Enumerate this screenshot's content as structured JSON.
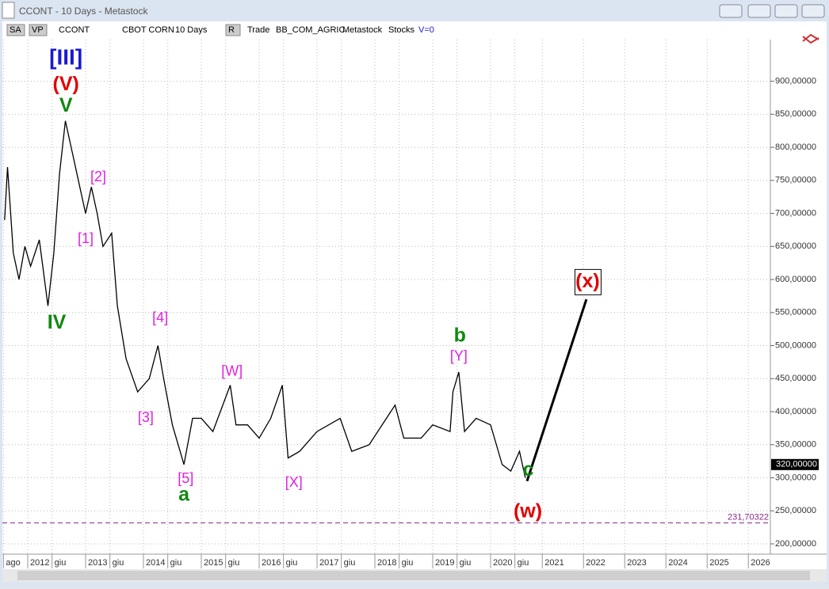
{
  "window": {
    "title": "CCONT - 10 Days - Metastock",
    "toolbar": [
      "SA",
      "VP",
      "CCONT",
      "CBOT CORN",
      "10 Days",
      "R",
      "Trade",
      "BB_COM_AGRIC",
      "Metastock",
      "Stocks",
      "V=0"
    ]
  },
  "chart_data": {
    "type": "line",
    "color": "#000000",
    "grid": true,
    "x": [
      2011.6,
      2011.65,
      2011.75,
      2011.85,
      2011.95,
      2012.05,
      2012.2,
      2012.35,
      2012.45,
      2012.55,
      2012.65,
      2012.75,
      2012.9,
      2013.0,
      2013.1,
      2013.2,
      2013.3,
      2013.45,
      2013.55,
      2013.7,
      2013.9,
      2014.1,
      2014.25,
      2014.35,
      2014.5,
      2014.7,
      2014.85,
      2015.0,
      2015.2,
      2015.5,
      2015.6,
      2015.8,
      2016.0,
      2016.2,
      2016.4,
      2016.5,
      2016.7,
      2017.0,
      2017.4,
      2017.6,
      2017.9,
      2018.2,
      2018.35,
      2018.5,
      2018.8,
      2019.0,
      2019.3,
      2019.35,
      2019.45,
      2019.55,
      2019.75,
      2020.0,
      2020.2,
      2020.35,
      2020.5,
      2020.6
    ],
    "values": [
      690,
      770,
      640,
      600,
      650,
      620,
      660,
      560,
      640,
      760,
      840,
      800,
      740,
      700,
      740,
      700,
      650,
      670,
      560,
      480,
      430,
      450,
      500,
      450,
      380,
      320,
      390,
      390,
      370,
      440,
      380,
      380,
      360,
      390,
      440,
      330,
      340,
      370,
      390,
      340,
      350,
      390,
      410,
      360,
      360,
      380,
      370,
      430,
      460,
      370,
      390,
      380,
      320,
      310,
      340,
      300
    ],
    "projection": {
      "x": [
        2020.63,
        2022.07
      ],
      "values": [
        295,
        570
      ]
    },
    "support": {
      "value": 231.70322,
      "label": "231,70322"
    },
    "last_price": {
      "value": 320,
      "label": "320,00000"
    },
    "ylim": [
      186.8,
      963
    ],
    "yticks": [
      {
        "value": 200,
        "label": "200,00000"
      },
      {
        "value": 250,
        "label": "250,00000"
      },
      {
        "value": 300,
        "label": "300,00000"
      },
      {
        "value": 350,
        "label": "350,00000"
      },
      {
        "value": 400,
        "label": "400,00000"
      },
      {
        "value": 450,
        "label": "450,00000"
      },
      {
        "value": 500,
        "label": "500,00000"
      },
      {
        "value": 550,
        "label": "550,00000"
      },
      {
        "value": 600,
        "label": "600,00000"
      },
      {
        "value": 650,
        "label": "650,00000"
      },
      {
        "value": 700,
        "label": "700,00000"
      },
      {
        "value": 750,
        "label": "750,00000"
      },
      {
        "value": 800,
        "label": "800,00000"
      },
      {
        "value": 850,
        "label": "850,00000"
      },
      {
        "value": 900,
        "label": "900,00000"
      }
    ],
    "xlim": [
      2011.56,
      2026.98
    ],
    "xticks": [
      {
        "value": 2011.58,
        "label": "ago"
      },
      2012,
      {
        "value": 2012.42,
        "label": "giu"
      },
      2013,
      {
        "value": 2013.42,
        "label": "giu"
      },
      2014,
      {
        "value": 2014.42,
        "label": "giu"
      },
      2015,
      {
        "value": 2015.42,
        "label": "giu"
      },
      2016,
      {
        "value": 2016.42,
        "label": "giu"
      },
      2017,
      {
        "value": 2017.42,
        "label": "giu"
      },
      2018,
      {
        "value": 2018.42,
        "label": "giu"
      },
      2019,
      {
        "value": 2019.42,
        "label": "giu"
      },
      2020,
      {
        "value": 2020.42,
        "label": "giu"
      },
      2021,
      2022,
      2023,
      2024,
      2025,
      2026
    ],
    "annotations": [
      {
        "text": "[III]",
        "x": 2012.66,
        "y": 934,
        "color": "#1a1ad0"
      },
      {
        "text": "(V)",
        "x": 2012.66,
        "y": 894,
        "color": "#e00000"
      },
      {
        "text": "V",
        "x": 2012.66,
        "y": 862,
        "color": "#118811"
      },
      {
        "text": "IV",
        "x": 2012.5,
        "y": 534,
        "color": "#118811"
      },
      {
        "text": "[2]",
        "x": 2013.22,
        "y": 754,
        "color": "#e020e0"
      },
      {
        "text": "[1]",
        "x": 2013.0,
        "y": 661,
        "color": "#e020e0"
      },
      {
        "text": "[4]",
        "x": 2014.29,
        "y": 541,
        "color": "#e020e0"
      },
      {
        "text": "[3]",
        "x": 2014.04,
        "y": 390,
        "color": "#e020e0"
      },
      {
        "text": "[5]",
        "x": 2014.73,
        "y": 298,
        "color": "#e020e0"
      },
      {
        "text": "a",
        "x": 2014.7,
        "y": 273,
        "color": "#118811"
      },
      {
        "text": "[W]",
        "x": 2015.53,
        "y": 460,
        "color": "#e020e0"
      },
      {
        "text": "[X]",
        "x": 2016.6,
        "y": 292,
        "color": "#e020e0"
      },
      {
        "text": "b",
        "x": 2019.47,
        "y": 514,
        "color": "#118811"
      },
      {
        "text": "[Y]",
        "x": 2019.45,
        "y": 483,
        "color": "#e020e0"
      },
      {
        "text": "c",
        "x": 2020.66,
        "y": 311,
        "color": "#118811"
      },
      {
        "text": "(w)",
        "x": 2020.65,
        "y": 248,
        "color": "#e00000"
      },
      {
        "text": "(x)",
        "x": 2022.1,
        "y": 596,
        "color": "#e00000"
      }
    ]
  }
}
